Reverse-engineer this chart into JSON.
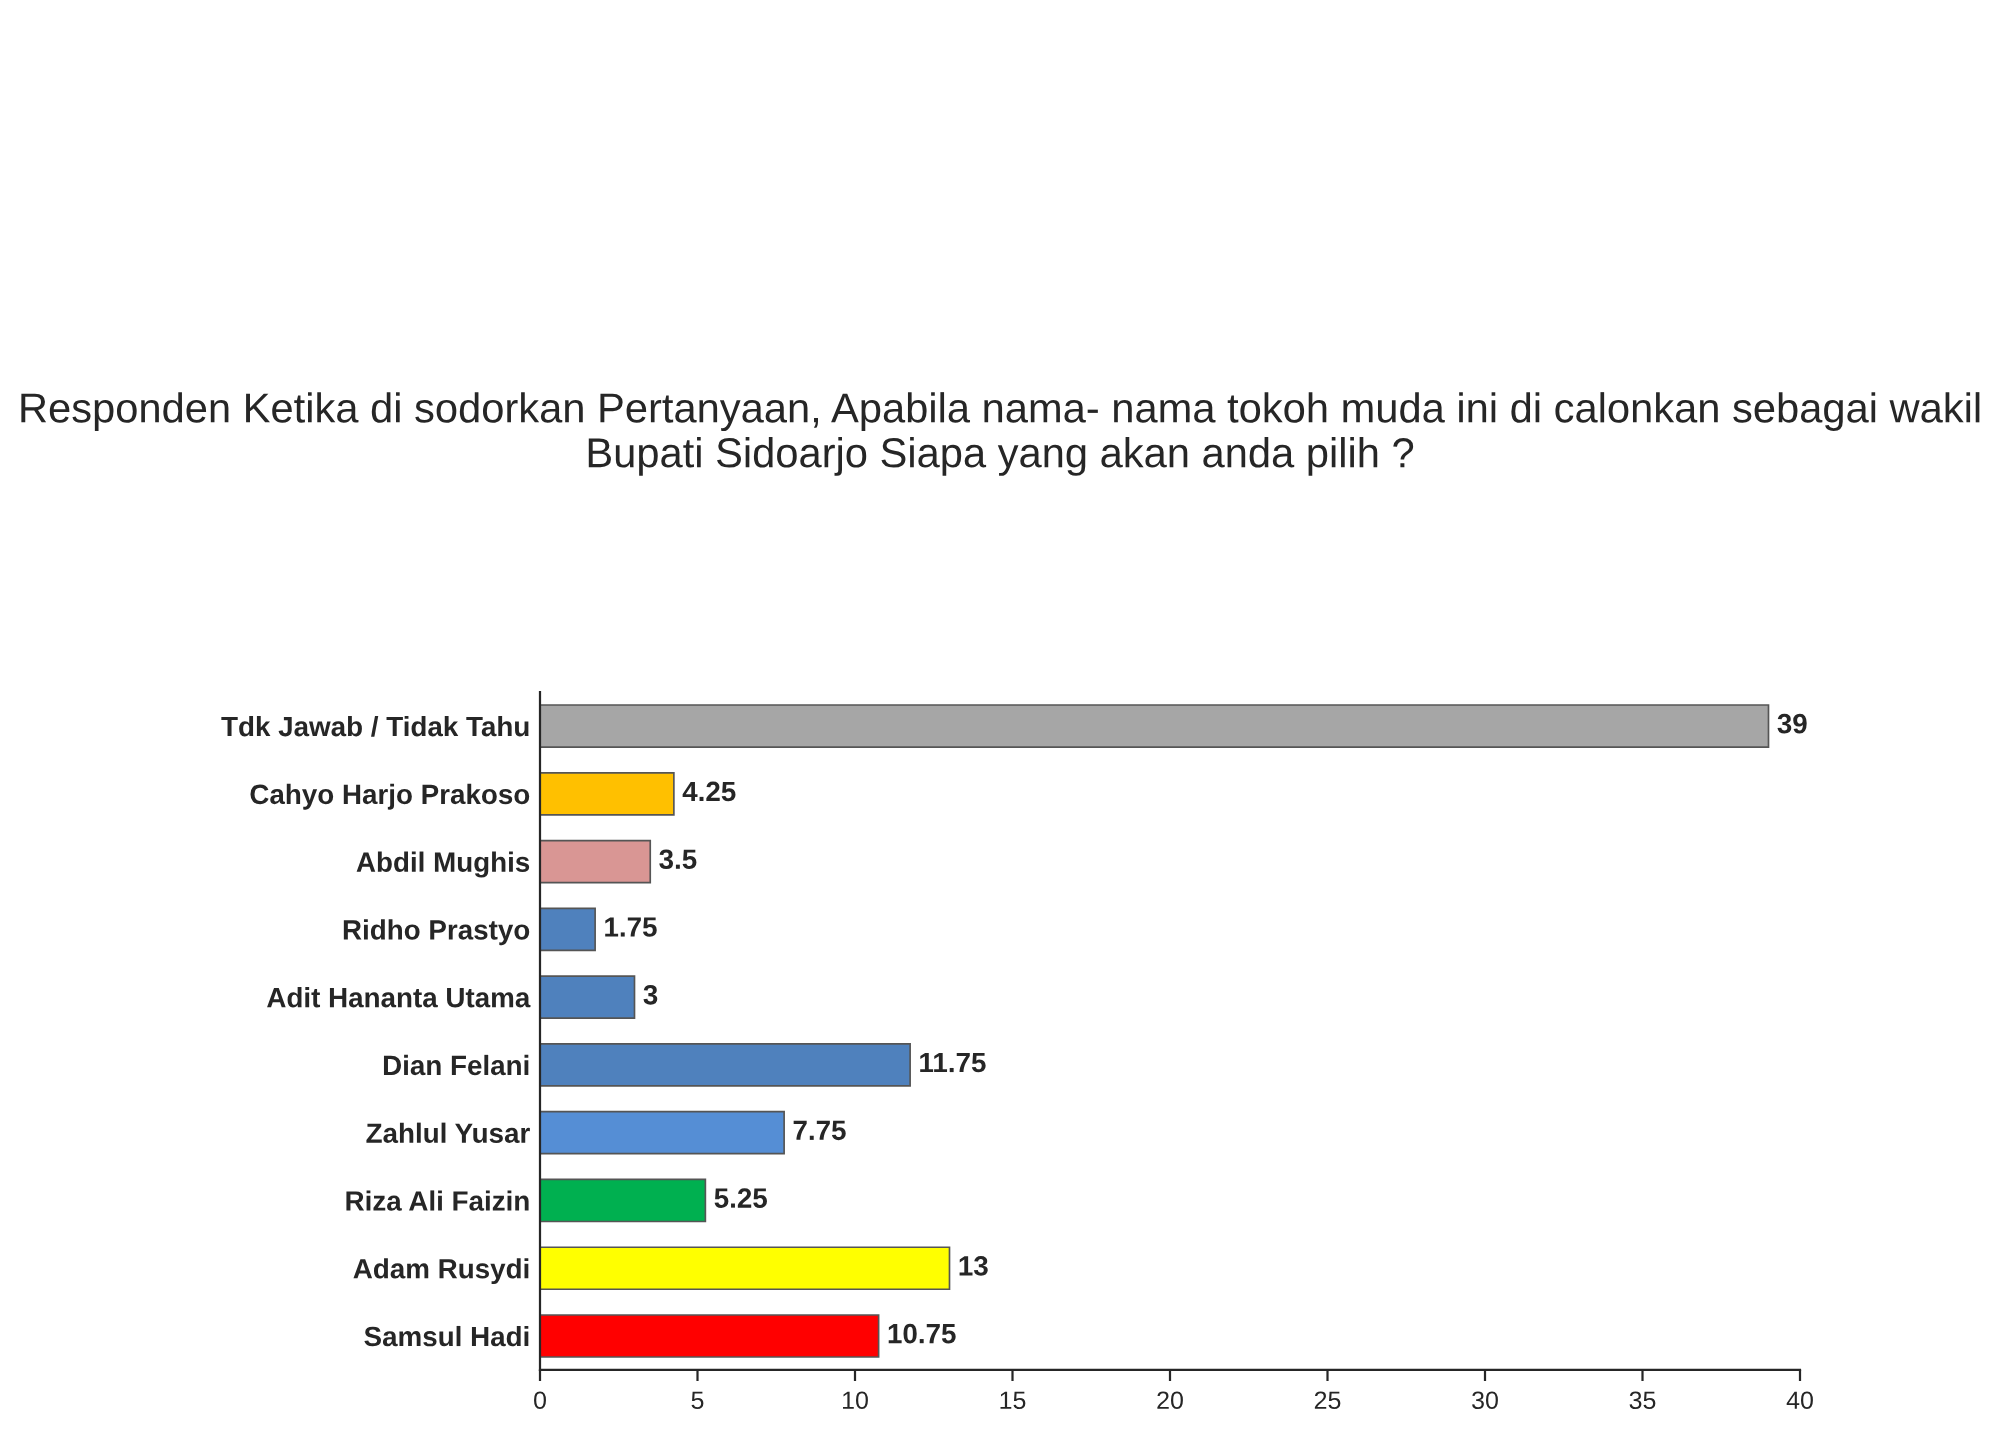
{
  "chart_data": {
    "type": "bar",
    "orientation": "horizontal",
    "title": "Responden Ketika di sodorkan Pertanyaan, Apabila nama- nama tokoh muda ini di calonkan sebagai wakil Bupati Sidoarjo Siapa yang akan anda pilih ?",
    "categories": [
      "Tdk Jawab / Tidak Tahu",
      "Cahyo Harjo Prakoso",
      "Abdil Mughis",
      "Ridho Prastyo",
      "Adit Hananta Utama",
      "Dian Felani",
      "Zahlul Yusar",
      "Riza Ali Faizin",
      "Adam Rusydi",
      "Samsul Hadi"
    ],
    "values": [
      39,
      4.25,
      3.5,
      1.75,
      3,
      11.75,
      7.75,
      5.25,
      13,
      10.75
    ],
    "colors": [
      "#a6a6a6",
      "#ffc000",
      "#d99694",
      "#4f81bd",
      "#4f81bd",
      "#4f81bd",
      "#558ed5",
      "#00b050",
      "#ffff00",
      "#ff0000"
    ],
    "xlim": [
      0,
      40
    ],
    "xticks": [
      0,
      5,
      10,
      15,
      20,
      25,
      30,
      35,
      40
    ],
    "data_labels": true,
    "grid": false,
    "legend": false
  }
}
